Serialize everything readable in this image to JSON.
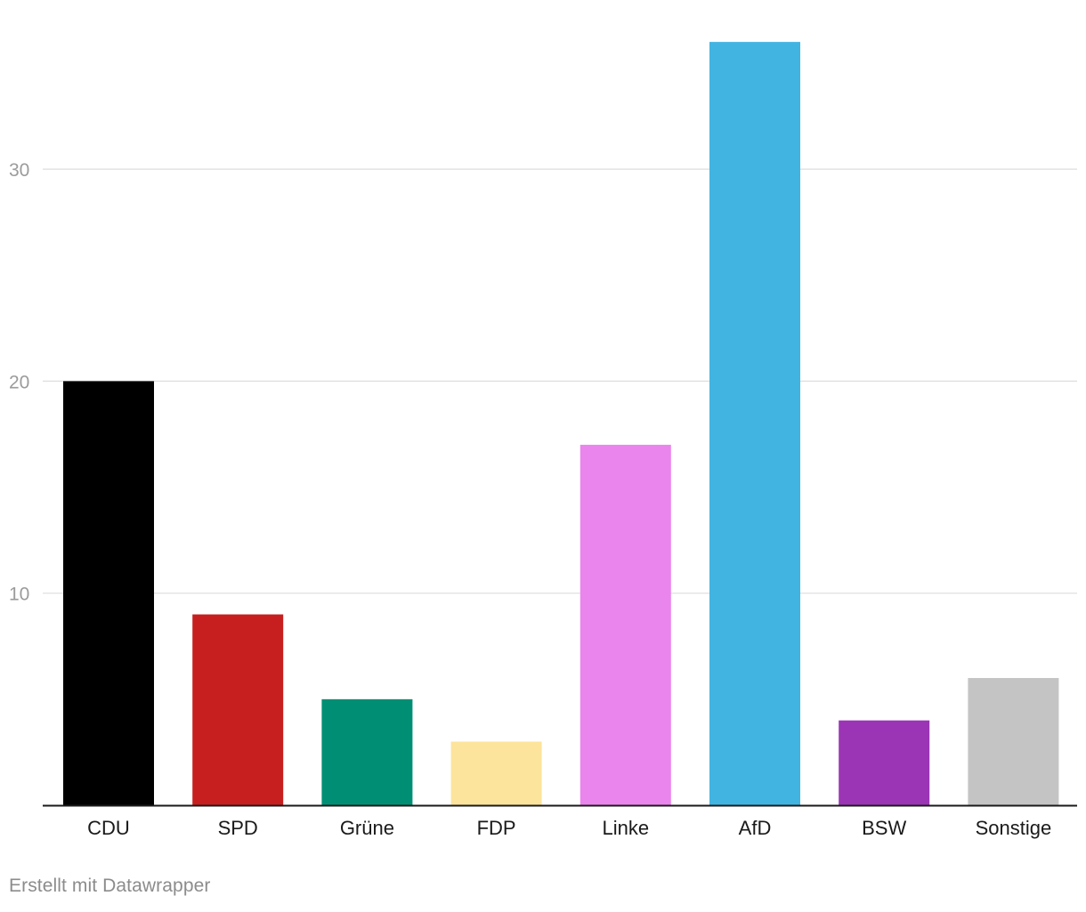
{
  "chart_data": {
    "type": "bar",
    "title": "",
    "xlabel": "",
    "ylabel": "",
    "categories": [
      "CDU",
      "SPD",
      "Grüne",
      "FDP",
      "Linke",
      "AfD",
      "BSW",
      "Sonstige"
    ],
    "values": [
      20,
      9,
      5,
      3,
      17,
      36,
      4,
      6
    ],
    "colors": [
      "#000000",
      "#c71f1f",
      "#008f74",
      "#fde49c",
      "#e985ec",
      "#42b4e2",
      "#9b35b5",
      "#c4c4c4"
    ],
    "ylim": [
      0,
      36
    ],
    "yticks": [
      10,
      20,
      30
    ],
    "grid": true,
    "legend": "none"
  },
  "footer": {
    "credit": "Erstellt mit Datawrapper"
  }
}
